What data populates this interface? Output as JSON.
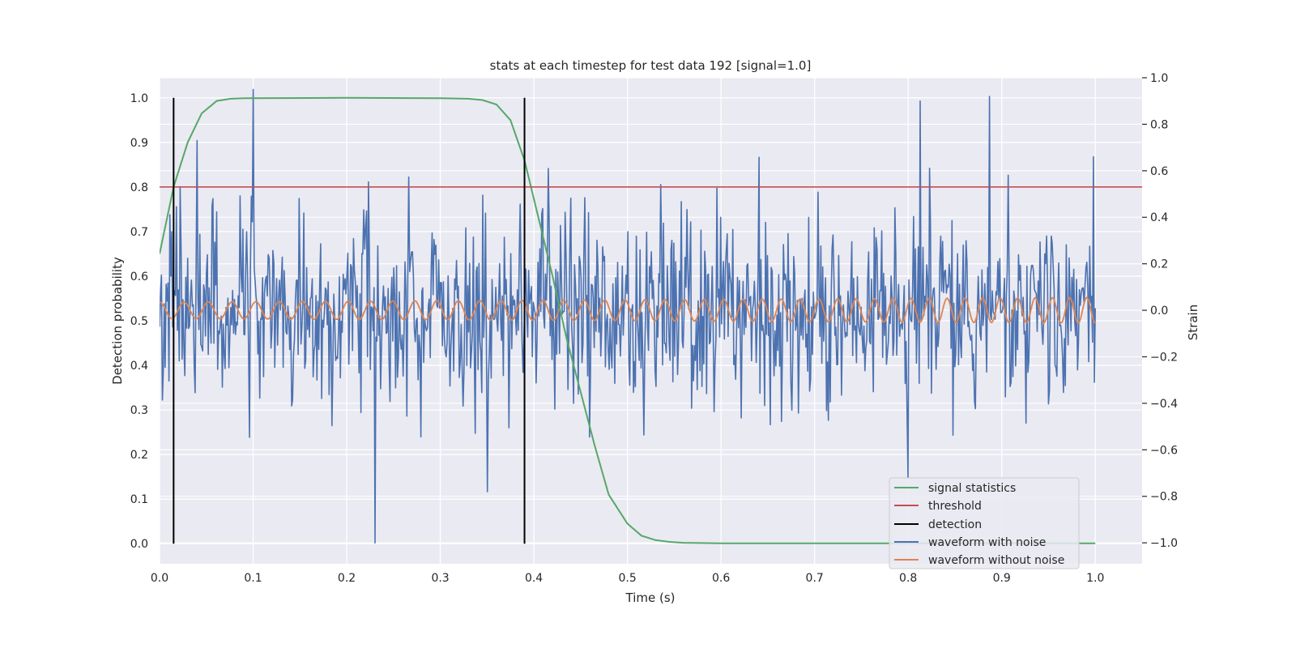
{
  "chart_data": {
    "type": "line",
    "title": "stats at each timestep for test data 192 [signal=1.0]",
    "xlabel": "Time (s)",
    "ylabel": "Detection probability",
    "ylabel_right": "Strain",
    "xlim": [
      0.0,
      1.05
    ],
    "ylim": [
      -0.045,
      1.045
    ],
    "ylim_right": [
      -1.09,
      1.0
    ],
    "xticks": [
      "0.0",
      "0.1",
      "0.2",
      "0.3",
      "0.4",
      "0.5",
      "0.6",
      "0.7",
      "0.8",
      "0.9",
      "1.0"
    ],
    "yticks": [
      "0.0",
      "0.1",
      "0.2",
      "0.3",
      "0.4",
      "0.5",
      "0.6",
      "0.7",
      "0.8",
      "0.9",
      "1.0"
    ],
    "yticks_right": [
      "−1.0",
      "−0.8",
      "−0.6",
      "−0.4",
      "−0.2",
      "0.0",
      "0.2",
      "0.4",
      "0.6",
      "0.8",
      "1.0"
    ],
    "grid": true,
    "legend_position": "lower-right",
    "colors": {
      "signal_statistics": "#55a868",
      "threshold": "#c44e52",
      "detection": "#000000",
      "waveform_with_noise": "#4c72b0",
      "waveform_without_noise": "#dd8452",
      "plot_background": "#eaeaf2",
      "grid": "#ffffff"
    },
    "series": [
      {
        "name": "signal statistics",
        "axis": "left",
        "x": [
          0.0,
          0.015,
          0.03,
          0.045,
          0.061,
          0.076,
          0.091,
          0.2,
          0.3,
          0.33,
          0.345,
          0.36,
          0.375,
          0.39,
          0.405,
          0.42,
          0.435,
          0.45,
          0.465,
          0.48,
          0.5,
          0.515,
          0.53,
          0.545,
          0.56,
          0.6,
          1.0
        ],
        "y": [
          0.65,
          0.8,
          0.9,
          0.965,
          0.993,
          0.998,
          0.999,
          1.0,
          0.999,
          0.998,
          0.995,
          0.985,
          0.95,
          0.86,
          0.73,
          0.6,
          0.46,
          0.34,
          0.22,
          0.11,
          0.045,
          0.018,
          0.008,
          0.004,
          0.002,
          0.001,
          0.001
        ]
      },
      {
        "name": "threshold",
        "axis": "left",
        "x": [
          0.0,
          1.05
        ],
        "y": [
          0.8,
          0.8
        ]
      },
      {
        "name": "detection",
        "axis": "left",
        "type": "vlines",
        "x": [
          0.015,
          0.39
        ],
        "ymin": 0.0,
        "ymax": 1.0
      },
      {
        "name": "waveform with noise",
        "axis": "right",
        "sampling": "1000 samples over 0–1 s, Gaussian-like noise",
        "std": 0.2,
        "peaks": [
          [
            0.1,
            0.95
          ],
          [
            0.23,
            -1.0
          ],
          [
            0.35,
            -0.78
          ],
          [
            0.8,
            -0.72
          ],
          [
            0.813,
            0.9
          ],
          [
            0.887,
            0.92
          ],
          [
            0.04,
            0.73
          ],
          [
            0.415,
            0.61
          ],
          [
            0.998,
            0.66
          ]
        ]
      },
      {
        "name": "waveform without noise",
        "axis": "right",
        "shape": "chirp: frequency rising ~38 Hz to ~55 Hz, amplitude rising 0.035 to 0.055"
      }
    ]
  }
}
